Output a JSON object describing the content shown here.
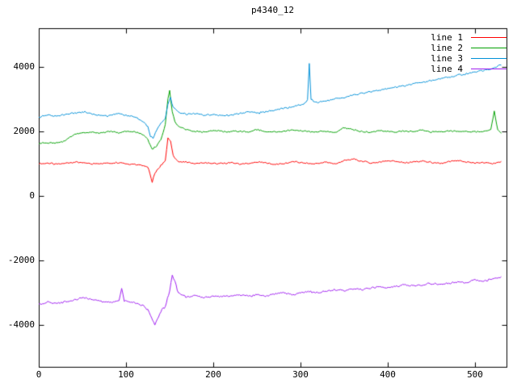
{
  "figure": {
    "background": "#ffffff",
    "border_color": "#000000",
    "text_color": "#000000"
  },
  "chart_data": {
    "type": "line",
    "title": "p4340_12",
    "xlabel": "",
    "ylabel": "",
    "grid": false,
    "legend_position": "top-right-inside",
    "xlim": [
      0,
      536
    ],
    "ylim": [
      -5300,
      5200
    ],
    "xticks": [
      0,
      100,
      200,
      300,
      400,
      500
    ],
    "yticks": [
      -4000,
      -2000,
      0,
      2000,
      4000
    ],
    "series": [
      {
        "name": "line 1",
        "color": "#ff0000",
        "noise": 28,
        "x": [
          0,
          10,
          20,
          30,
          40,
          50,
          60,
          70,
          80,
          90,
          100,
          110,
          120,
          125,
          130,
          133,
          140,
          145,
          148,
          151,
          154,
          160,
          170,
          180,
          190,
          200,
          210,
          220,
          230,
          240,
          250,
          260,
          270,
          280,
          290,
          300,
          310,
          320,
          330,
          340,
          350,
          360,
          370,
          380,
          390,
          400,
          410,
          420,
          430,
          440,
          450,
          460,
          470,
          480,
          490,
          500,
          510,
          520,
          530
        ],
        "y": [
          1000,
          1020,
          980,
          1010,
          1050,
          1030,
          990,
          1005,
          1015,
          1040,
          1000,
          980,
          950,
          900,
          430,
          700,
          950,
          1100,
          1800,
          1700,
          1250,
          1060,
          1050,
          1000,
          1020,
          1010,
          1000,
          1030,
          990,
          1000,
          1050,
          1020,
          980,
          1000,
          1060,
          1030,
          1000,
          1010,
          1040,
          990,
          1100,
          1140,
          1080,
          1020,
          1050,
          1100,
          1060,
          1030,
          1050,
          1080,
          1040,
          1000,
          1060,
          1090,
          1050,
          1020,
          1040,
          1000,
          1050
        ]
      },
      {
        "name": "line 2",
        "color": "#00a000",
        "noise": 30,
        "x": [
          0,
          10,
          20,
          30,
          40,
          50,
          60,
          70,
          80,
          90,
          100,
          110,
          120,
          125,
          130,
          135,
          140,
          145,
          148,
          150,
          153,
          156,
          160,
          170,
          180,
          190,
          200,
          210,
          220,
          230,
          240,
          250,
          260,
          270,
          280,
          290,
          300,
          310,
          320,
          330,
          340,
          350,
          360,
          370,
          380,
          390,
          400,
          410,
          420,
          430,
          440,
          450,
          460,
          470,
          480,
          490,
          500,
          510,
          518,
          522,
          526,
          530
        ],
        "y": [
          1620,
          1650,
          1640,
          1700,
          1900,
          1950,
          1980,
          1950,
          2000,
          1960,
          2000,
          1980,
          1900,
          1750,
          1450,
          1550,
          1750,
          2200,
          3000,
          3250,
          2600,
          2300,
          2150,
          2050,
          2000,
          1980,
          2020,
          2000,
          1990,
          2010,
          1970,
          2050,
          2000,
          1980,
          2000,
          2050,
          2020,
          2000,
          1990,
          2010,
          1960,
          2120,
          2050,
          2000,
          1980,
          2020,
          2000,
          1990,
          2010,
          2000,
          2050,
          1980,
          2000,
          2020,
          1990,
          2000,
          1980,
          2000,
          2050,
          2620,
          2050,
          1950
        ]
      },
      {
        "name": "line 3",
        "color": "#0090d8",
        "noise": 35,
        "x": [
          0,
          10,
          20,
          30,
          40,
          50,
          60,
          70,
          80,
          90,
          100,
          110,
          120,
          125,
          128,
          131,
          135,
          140,
          145,
          148,
          151,
          154,
          160,
          170,
          180,
          190,
          200,
          210,
          220,
          230,
          240,
          250,
          260,
          270,
          280,
          290,
          300,
          305,
          308,
          310,
          312,
          316,
          320,
          330,
          340,
          350,
          360,
          370,
          380,
          390,
          400,
          410,
          420,
          430,
          440,
          450,
          460,
          470,
          480,
          490,
          500,
          510,
          520,
          530
        ],
        "y": [
          2450,
          2500,
          2480,
          2520,
          2560,
          2620,
          2550,
          2500,
          2480,
          2560,
          2500,
          2450,
          2300,
          2150,
          1850,
          1800,
          2050,
          2250,
          2400,
          2850,
          3050,
          2750,
          2600,
          2520,
          2560,
          2500,
          2530,
          2490,
          2510,
          2560,
          2610,
          2560,
          2610,
          2660,
          2710,
          2760,
          2830,
          2880,
          3000,
          4100,
          3000,
          2900,
          2900,
          2950,
          3000,
          3050,
          3130,
          3180,
          3230,
          3280,
          3330,
          3380,
          3430,
          3480,
          3530,
          3580,
          3640,
          3690,
          3740,
          3790,
          3840,
          3890,
          3960,
          4060
        ]
      },
      {
        "name": "line 4",
        "color": "#a020f0",
        "noise": 40,
        "x": [
          0,
          10,
          20,
          30,
          40,
          50,
          60,
          70,
          80,
          88,
          92,
          95,
          98,
          105,
          110,
          120,
          125,
          128,
          133,
          136,
          140,
          145,
          150,
          153,
          156,
          160,
          170,
          180,
          190,
          200,
          210,
          220,
          230,
          240,
          250,
          260,
          270,
          280,
          290,
          300,
          310,
          320,
          330,
          340,
          350,
          360,
          370,
          380,
          390,
          400,
          410,
          420,
          430,
          440,
          450,
          460,
          470,
          480,
          490,
          500,
          510,
          520,
          530
        ],
        "y": [
          -3350,
          -3300,
          -3330,
          -3280,
          -3250,
          -3140,
          -3200,
          -3260,
          -3300,
          -3280,
          -3250,
          -2870,
          -3260,
          -3300,
          -3320,
          -3400,
          -3550,
          -3700,
          -4000,
          -3820,
          -3560,
          -3420,
          -2950,
          -2430,
          -2650,
          -3020,
          -3140,
          -3100,
          -3150,
          -3100,
          -3130,
          -3100,
          -3080,
          -3110,
          -3060,
          -3100,
          -3050,
          -3010,
          -3060,
          -3010,
          -2960,
          -3000,
          -2950,
          -2910,
          -2950,
          -2860,
          -2900,
          -2850,
          -2810,
          -2850,
          -2800,
          -2760,
          -2800,
          -2750,
          -2710,
          -2750,
          -2700,
          -2660,
          -2700,
          -2610,
          -2650,
          -2560,
          -2500
        ]
      }
    ]
  }
}
